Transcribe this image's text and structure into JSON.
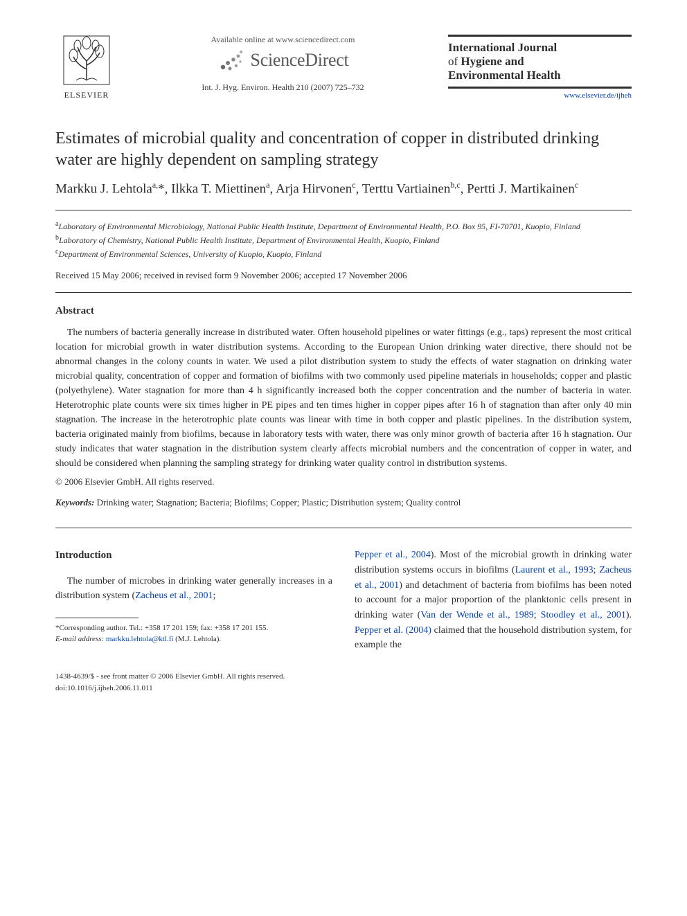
{
  "header": {
    "publisher_name": "ELSEVIER",
    "available_online": "Available online at www.sciencedirect.com",
    "platform_name": "ScienceDirect",
    "citation": "Int. J. Hyg. Environ. Health 210 (2007) 725–732",
    "journal_line1": "International Journal",
    "journal_line2_light": "of ",
    "journal_line2_bold": "Hygiene and",
    "journal_line3": "Environmental Health",
    "journal_url": "www.elsevier.de/ijheh"
  },
  "article": {
    "title": "Estimates of microbial quality and concentration of copper in distributed drinking water are highly dependent on sampling strategy",
    "authors_html": "Markku J. Lehtola<sup>a,</sup>*, Ilkka T. Miettinen<sup>a</sup>, Arja Hirvonen<sup>c</sup>, Terttu Vartiainen<sup>b,c</sup>, Pertti J. Martikainen<sup>c</sup>",
    "affiliations": [
      {
        "sup": "a",
        "text": "Laboratory of Environmental Microbiology, National Public Health Institute, Department of Environmental Health, P.O. Box 95, FI-70701, Kuopio, Finland"
      },
      {
        "sup": "b",
        "text": "Laboratory of Chemistry, National Public Health Institute, Department of Environmental Health, Kuopio, Finland"
      },
      {
        "sup": "c",
        "text": "Department of Environmental Sciences, University of Kuopio, Kuopio, Finland"
      }
    ],
    "dates": "Received 15 May 2006; received in revised form 9 November 2006; accepted 17 November 2006",
    "abstract_heading": "Abstract",
    "abstract": "The numbers of bacteria generally increase in distributed water. Often household pipelines or water fittings (e.g., taps) represent the most critical location for microbial growth in water distribution systems. According to the European Union drinking water directive, there should not be abnormal changes in the colony counts in water. We used a pilot distribution system to study the effects of water stagnation on drinking water microbial quality, concentration of copper and formation of biofilms with two commonly used pipeline materials in households; copper and plastic (polyethylene). Water stagnation for more than 4 h significantly increased both the copper concentration and the number of bacteria in water. Heterotrophic plate counts were six times higher in PE pipes and ten times higher in copper pipes after 16 h of stagnation than after only 40 min stagnation. The increase in the heterotrophic plate counts was linear with time in both copper and plastic pipelines. In the distribution system, bacteria originated mainly from biofilms, because in laboratory tests with water, there was only minor growth of bacteria after 16 h stagnation. Our study indicates that water stagnation in the distribution system clearly affects microbial numbers and the concentration of copper in water, and should be considered when planning the sampling strategy for drinking water quality control in distribution systems.",
    "copyright": "© 2006 Elsevier GmbH. All rights reserved.",
    "keywords_label": "Keywords:",
    "keywords": "Drinking water; Stagnation; Bacteria; Biofilms; Copper; Plastic; Distribution system; Quality control"
  },
  "body": {
    "intro_heading": "Introduction",
    "left_para": "The number of microbes in drinking water generally increases in a distribution system (",
    "left_cite1": "Zacheus et al., 2001",
    "left_sep": "; ",
    "right_cite1": "Pepper et al., 2004",
    "right_text1": "). Most of the microbial growth in drinking water distribution systems occurs in biofilms (",
    "right_cite2": "Laurent et al., 1993",
    "right_sep1": "; ",
    "right_cite3": "Zacheus et al., 2001",
    "right_text2": ") and detachment of bacteria from biofilms has been noted to account for a major proportion of the planktonic cells present in drinking water (",
    "right_cite4": "Van der Wende et al., 1989",
    "right_sep2": "; ",
    "right_cite5": "Stoodley et al., 2001",
    "right_text3": "). ",
    "right_cite6": "Pepper et al. (2004)",
    "right_text4": " claimed that the household distribution system, for example the"
  },
  "footnote": {
    "corresponding": "*Corresponding author. Tel.: +358 17 201 159; fax: +358 17 201 155.",
    "email_label": "E-mail address: ",
    "email": "markku.lehtola@ktl.fi",
    "email_tail": " (M.J. Lehtola)."
  },
  "footer": {
    "issn": "1438-4639/$ - see front matter © 2006 Elsevier GmbH. All rights reserved.",
    "doi": "doi:10.1016/j.ijheh.2006.11.011"
  },
  "colors": {
    "text": "#2e2e2e",
    "link": "#0645ad",
    "grey": "#585858",
    "platform_orange": "#f7941e"
  }
}
